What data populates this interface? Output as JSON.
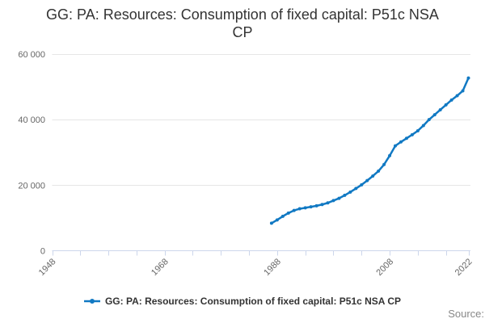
{
  "title": {
    "lines": [
      "GG: PA: Resources: Consumption of fixed capital: P51c NSA",
      "CP"
    ]
  },
  "legend": {
    "label": "GG: PA: Resources: Consumption of fixed capital: P51c NSA CP",
    "marker": "line-with-dot"
  },
  "source": {
    "label": "Source:"
  },
  "colors": {
    "series": "#1179c3",
    "grid": "#e6e6e6",
    "axis": "#ccd6eb",
    "tick_label": "#666666",
    "title": "#333333",
    "legend_text": "#333333",
    "source_text": "#888888",
    "background": "#ffffff"
  },
  "chart_data": {
    "type": "line",
    "title": "GG: PA: Resources: Consumption of fixed capital: P51c NSA CP",
    "xlabel": "",
    "ylabel": "",
    "grid": "horizontal",
    "legend_position": "bottom",
    "marker": "circle",
    "x_range": [
      1948,
      2022
    ],
    "y_range": [
      0,
      60000
    ],
    "y_ticks": [
      {
        "value": 0,
        "label": "0"
      },
      {
        "value": 20000,
        "label": "20 000"
      },
      {
        "value": 40000,
        "label": "40 000"
      },
      {
        "value": 60000,
        "label": "60 000"
      }
    ],
    "x_ticks": [
      1948,
      1953,
      1958,
      1963,
      1968,
      1973,
      1978,
      1983,
      1988,
      1993,
      1998,
      2003,
      2008,
      2013,
      2018,
      2022
    ],
    "x_tick_labels": [
      {
        "value": 1948,
        "label": "1948"
      },
      {
        "value": 1968,
        "label": "1968"
      },
      {
        "value": 1988,
        "label": "1988"
      },
      {
        "value": 2008,
        "label": "2008"
      },
      {
        "value": 2022,
        "label": "2022"
      }
    ],
    "series": [
      {
        "name": "GG: PA: Resources: Consumption of fixed capital: P51c NSA CP",
        "color": "#1179c3",
        "x": [
          1987,
          1988,
          1989,
          1990,
          1991,
          1992,
          1993,
          1994,
          1995,
          1996,
          1997,
          1998,
          1999,
          2000,
          2001,
          2002,
          2003,
          2004,
          2005,
          2006,
          2007,
          2008,
          2009,
          2010,
          2011,
          2012,
          2013,
          2014,
          2015,
          2016,
          2017,
          2018,
          2019,
          2020,
          2021,
          2022
        ],
        "values": [
          8400,
          9400,
          10500,
          11500,
          12300,
          12800,
          13100,
          13400,
          13700,
          14100,
          14600,
          15300,
          16000,
          16900,
          17900,
          19000,
          20100,
          21400,
          22800,
          24300,
          26300,
          29000,
          32000,
          33200,
          34300,
          35400,
          36600,
          38200,
          40000,
          41500,
          43000,
          44500,
          46000,
          47300,
          48800,
          52700
        ]
      }
    ]
  }
}
